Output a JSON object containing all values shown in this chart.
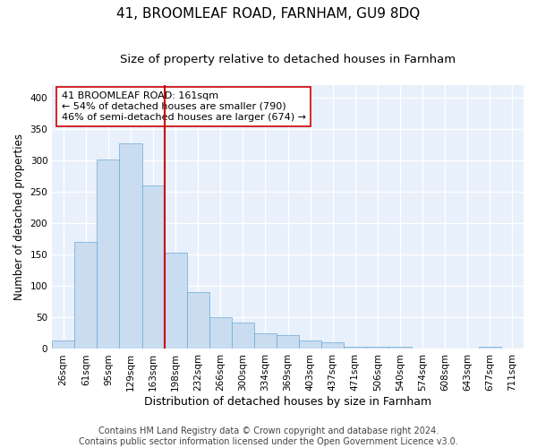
{
  "title": "41, BROOMLEAF ROAD, FARNHAM, GU9 8DQ",
  "subtitle": "Size of property relative to detached houses in Farnham",
  "xlabel": "Distribution of detached houses by size in Farnham",
  "ylabel": "Number of detached properties",
  "footer_line1": "Contains HM Land Registry data © Crown copyright and database right 2024.",
  "footer_line2": "Contains public sector information licensed under the Open Government Licence v3.0.",
  "bar_labels": [
    "26sqm",
    "61sqm",
    "95sqm",
    "129sqm",
    "163sqm",
    "198sqm",
    "232sqm",
    "266sqm",
    "300sqm",
    "334sqm",
    "369sqm",
    "403sqm",
    "437sqm",
    "471sqm",
    "506sqm",
    "540sqm",
    "574sqm",
    "608sqm",
    "643sqm",
    "677sqm",
    "711sqm"
  ],
  "bar_values": [
    13,
    171,
    301,
    328,
    260,
    153,
    91,
    50,
    42,
    25,
    22,
    13,
    11,
    3,
    3,
    4,
    1,
    0,
    1,
    3
  ],
  "bar_color": "#c9dcf0",
  "bar_edge_color": "#6aaad4",
  "vline_color": "#cc0000",
  "vline_bar_index": 4,
  "annotation_text": "41 BROOMLEAF ROAD: 161sqm\n← 54% of detached houses are smaller (790)\n46% of semi-detached houses are larger (674) →",
  "annotation_box_color": "#ffffff",
  "annotation_box_edge": "#cc0000",
  "ylim": [
    0,
    420
  ],
  "yticks": [
    0,
    50,
    100,
    150,
    200,
    250,
    300,
    350,
    400
  ],
  "background_color": "#e8f0fb",
  "fig_background_color": "#ffffff",
  "grid_color": "#ffffff",
  "title_fontsize": 11,
  "subtitle_fontsize": 9.5,
  "xlabel_fontsize": 9,
  "ylabel_fontsize": 8.5,
  "tick_fontsize": 7.5,
  "annotation_fontsize": 8,
  "footer_fontsize": 7
}
